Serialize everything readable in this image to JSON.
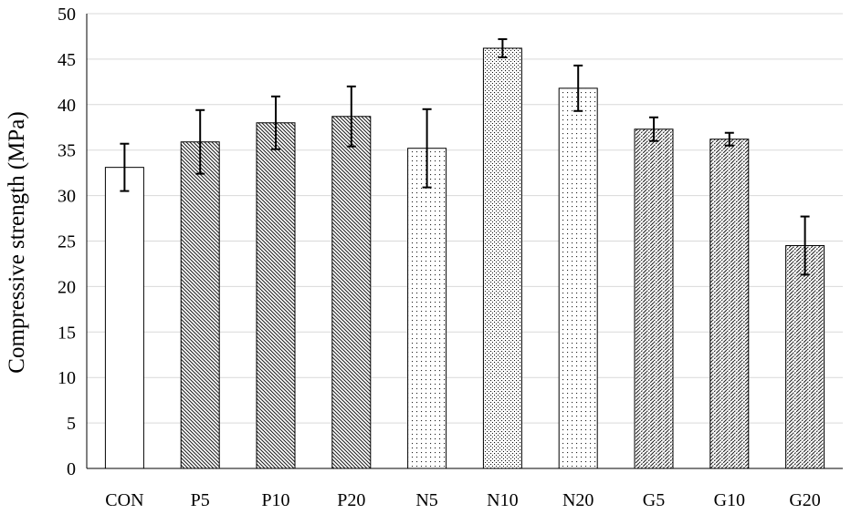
{
  "chart_data": {
    "type": "bar",
    "title": "",
    "xlabel": "",
    "ylabel": "Compressive strength (MPa)",
    "ylim": [
      0,
      50
    ],
    "ytick_step": 5,
    "grid": "horizontal",
    "categories": [
      "CON",
      "P5",
      "P10",
      "P20",
      "N5",
      "N10",
      "N20",
      "G5",
      "G10",
      "G20"
    ],
    "values": [
      33.1,
      35.9,
      38.0,
      38.7,
      35.2,
      46.2,
      41.8,
      37.3,
      36.2,
      24.5
    ],
    "errors": [
      2.6,
      3.5,
      2.9,
      3.3,
      4.3,
      1.0,
      2.5,
      1.3,
      0.7,
      3.2
    ],
    "fills": [
      "solid-white",
      "dense-diagonal",
      "dense-diagonal",
      "dense-diagonal",
      "sparse-dots",
      "dense-dots",
      "sparse-dots",
      "dashed-diagonal",
      "dashed-diagonal",
      "dashed-diagonal"
    ]
  }
}
